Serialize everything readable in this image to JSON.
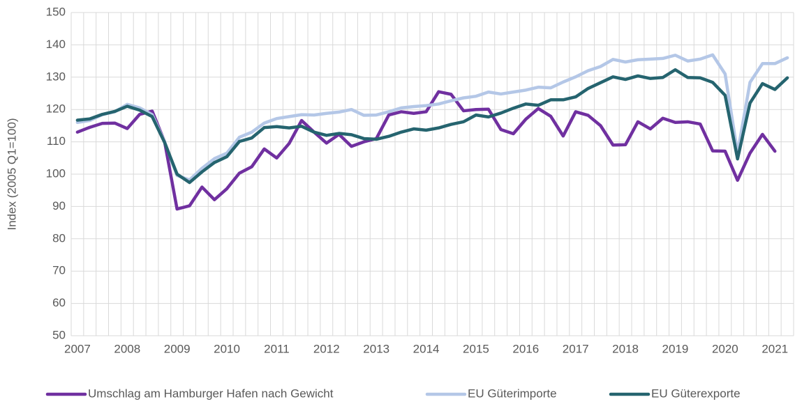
{
  "chart_data": {
    "type": "line",
    "y_label": "Index (2005 Q1=100)",
    "categories": [
      "2007",
      null,
      null,
      null,
      "2008",
      null,
      null,
      null,
      "2009",
      null,
      null,
      null,
      "2010",
      null,
      null,
      null,
      "2011",
      null,
      null,
      null,
      "2012",
      null,
      null,
      null,
      "2013",
      null,
      null,
      null,
      "2014",
      null,
      null,
      null,
      "2015",
      null,
      null,
      null,
      "2016",
      null,
      null,
      null,
      "2017",
      null,
      null,
      null,
      "2018",
      null,
      null,
      null,
      "2019",
      null,
      null,
      null,
      "2020",
      null,
      null,
      null,
      "2021",
      null
    ],
    "ylim": [
      50,
      150
    ],
    "yticks": [
      50,
      60,
      70,
      80,
      90,
      100,
      110,
      120,
      130,
      140,
      150
    ],
    "grid": true,
    "legend": "bottom",
    "series": [
      {
        "name": "Umschlag am Hamburger Hafen nach Gewicht",
        "color": "#7030a0",
        "values": [
          113,
          114.5,
          115.7,
          115.8,
          114.1,
          118.5,
          119.5,
          110,
          89.2,
          90.2,
          96,
          92.1,
          95.5,
          100.3,
          102.3,
          107.8,
          105,
          109.5,
          116.6,
          113,
          109.6,
          112.3,
          108.6,
          110,
          111,
          118.3,
          119.3,
          118.8,
          119.3,
          125.5,
          124.7,
          119.6,
          120,
          120.1,
          113.8,
          112.5,
          117,
          120.3,
          117.9,
          111.8,
          119.3,
          118.2,
          115,
          109,
          109.1,
          116.2,
          114,
          117.3,
          116,
          116.2,
          115.5,
          107.2,
          107.1,
          98.1,
          106.5,
          112.3,
          107.1,
          null
        ]
      },
      {
        "name": "EU Güterimporte",
        "color": "#b4c7e7",
        "values": [
          116,
          116.6,
          118.4,
          119.3,
          121.6,
          120.5,
          118.4,
          110,
          99.6,
          98.2,
          101.8,
          104.8,
          106.5,
          111.4,
          113,
          115.8,
          117.2,
          117.8,
          118.4,
          118.3,
          118.8,
          119.2,
          120,
          118.2,
          118.3,
          119.3,
          120.5,
          120.9,
          121.2,
          121.7,
          122.7,
          123.6,
          124.1,
          125.4,
          124.8,
          125.4,
          126,
          126.9,
          126.7,
          128.5,
          130.1,
          132,
          133.3,
          135.5,
          134.7,
          135.4,
          135.6,
          135.8,
          136.8,
          135,
          135.6,
          136.9,
          131,
          106.5,
          128.4,
          134.2,
          134.2,
          136
        ]
      },
      {
        "name": "EU Güterexporte",
        "color": "#25646f",
        "values": [
          116.7,
          117.1,
          118.5,
          119.4,
          121,
          119.8,
          117.8,
          109.8,
          100,
          97.4,
          100.7,
          103.6,
          105.4,
          110.1,
          111.2,
          114.4,
          114.7,
          114.3,
          114.8,
          113,
          112,
          112.6,
          112.2,
          111,
          110.8,
          111.7,
          113,
          114,
          113.6,
          114.3,
          115.4,
          116.2,
          118.3,
          117.7,
          118.9,
          120.4,
          121.7,
          121.3,
          123,
          123,
          123.9,
          126.5,
          128.3,
          130.1,
          129.3,
          130.4,
          129.6,
          129.9,
          132.3,
          129.9,
          129.8,
          128.4,
          124.4,
          104.7,
          122,
          128,
          126.2,
          129.8
        ]
      }
    ]
  }
}
